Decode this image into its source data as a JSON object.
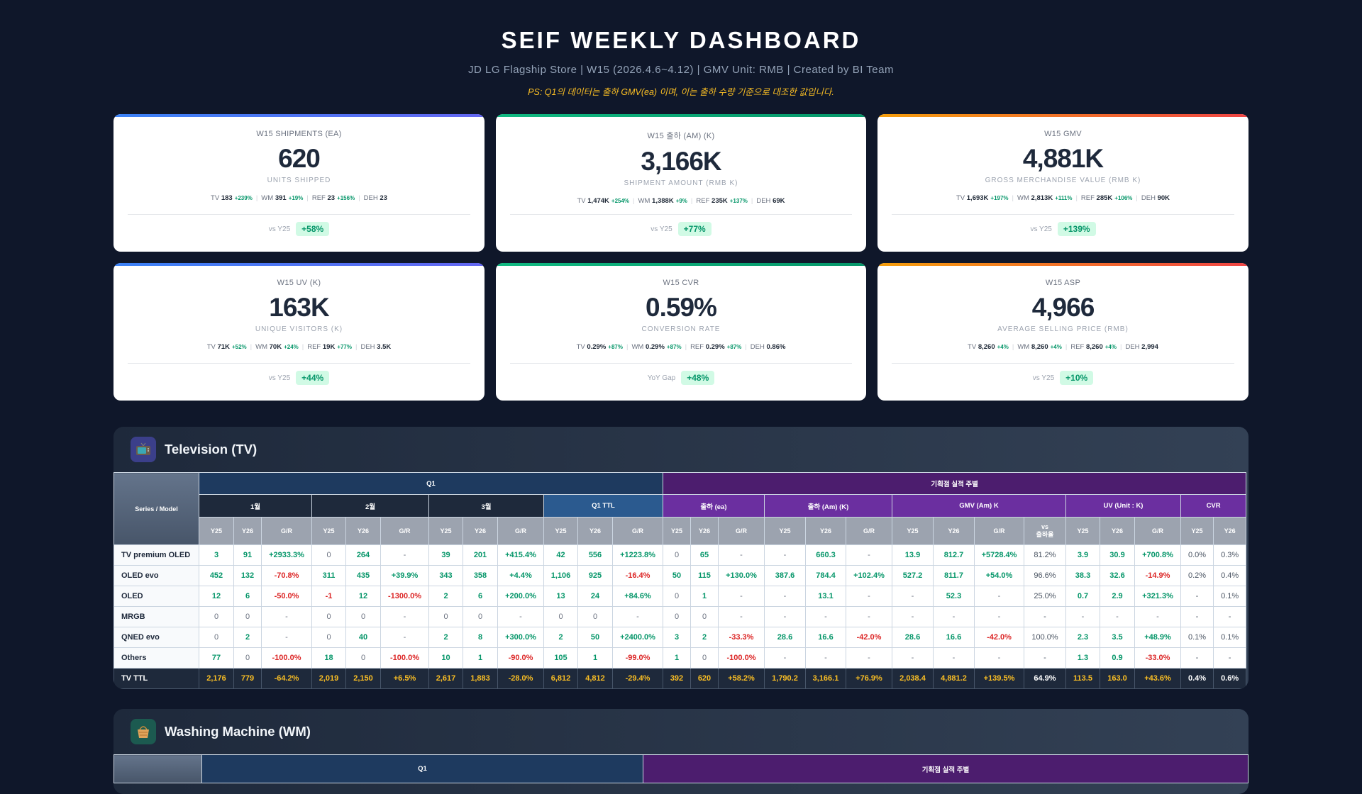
{
  "header": {
    "title": "SEIF WEEKLY DASHBOARD",
    "subtitle": "JD LG Flagship Store | W15 (2026.4.6~4.12) | GMV Unit: RMB | Created by BI Team",
    "note": "PS: Q1의 데이터는 출하 GMV(ea) 이며, 이는 출하 수량 기준으로 대조한 값입니다."
  },
  "colors": {
    "background": "#0f172a",
    "positive": "#059669",
    "negative": "#dc2626",
    "total_text": "#fbbf24"
  },
  "cards": [
    {
      "title": "W15 SHIPMENTS (EA)",
      "value": "620",
      "sub": "UNITS SHIPPED",
      "accent": "blue",
      "details": [
        {
          "label": "TV",
          "value": "183",
          "change": "+239%"
        },
        {
          "label": "WM",
          "value": "391",
          "change": "+19%"
        },
        {
          "label": "REF",
          "value": "23",
          "change": "+156%"
        },
        {
          "label": "DEH",
          "value": "23",
          "change": ""
        }
      ],
      "vs_label": "vs Y25",
      "vs_value": "+58%"
    },
    {
      "title": "W15 출하 (AM) (K)",
      "value": "3,166K",
      "sub": "SHIPMENT AMOUNT (RMB K)",
      "accent": "green",
      "details": [
        {
          "label": "TV",
          "value": "1,474K",
          "change": "+254%"
        },
        {
          "label": "WM",
          "value": "1,388K",
          "change": "+9%"
        },
        {
          "label": "REF",
          "value": "235K",
          "change": "+137%"
        },
        {
          "label": "DEH",
          "value": "69K",
          "change": ""
        }
      ],
      "vs_label": "vs Y25",
      "vs_value": "+77%"
    },
    {
      "title": "W15 GMV",
      "value": "4,881K",
      "sub": "GROSS MERCHANDISE VALUE (RMB K)",
      "accent": "orange",
      "details": [
        {
          "label": "TV",
          "value": "1,693K",
          "change": "+197%"
        },
        {
          "label": "WM",
          "value": "2,813K",
          "change": "+111%"
        },
        {
          "label": "REF",
          "value": "285K",
          "change": "+106%"
        },
        {
          "label": "DEH",
          "value": "90K",
          "change": ""
        }
      ],
      "vs_label": "vs Y25",
      "vs_value": "+139%"
    },
    {
      "title": "W15 UV (K)",
      "value": "163K",
      "sub": "UNIQUE VISITORS (K)",
      "accent": "blue",
      "details": [
        {
          "label": "TV",
          "value": "71K",
          "change": "+52%"
        },
        {
          "label": "WM",
          "value": "70K",
          "change": "+24%"
        },
        {
          "label": "REF",
          "value": "19K",
          "change": "+77%"
        },
        {
          "label": "DEH",
          "value": "3.5K",
          "change": ""
        }
      ],
      "vs_label": "vs Y25",
      "vs_value": "+44%"
    },
    {
      "title": "W15 CVR",
      "value": "0.59%",
      "sub": "CONVERSION RATE",
      "accent": "green",
      "details": [
        {
          "label": "TV",
          "value": "0.29%",
          "change": "+87%"
        },
        {
          "label": "WM",
          "value": "0.29%",
          "change": "+87%"
        },
        {
          "label": "REF",
          "value": "0.29%",
          "change": "+87%"
        },
        {
          "label": "DEH",
          "value": "0.86%",
          "change": ""
        }
      ],
      "vs_label": "YoY Gap",
      "vs_value": "+48%"
    },
    {
      "title": "W15 ASP",
      "value": "4,966",
      "sub": "AVERAGE SELLING PRICE (RMB)",
      "accent": "orange",
      "details": [
        {
          "label": "TV",
          "value": "8,260",
          "change": "+4%"
        },
        {
          "label": "WM",
          "value": "8,260",
          "change": "+4%"
        },
        {
          "label": "REF",
          "value": "8,260",
          "change": "+4%"
        },
        {
          "label": "DEH",
          "value": "2,994",
          "change": ""
        }
      ],
      "vs_label": "vs Y25",
      "vs_value": "+10%"
    }
  ],
  "tv": {
    "name": "Television (TV)",
    "icon": "tv-icon",
    "series_header": "Series / Model",
    "group_q1": "Q1",
    "group_weekly": "기획점 실적 주별",
    "subgroups": [
      {
        "label": "1월",
        "cols": [
          "Y25",
          "Y26",
          "G/R"
        ],
        "kind": "month"
      },
      {
        "label": "2월",
        "cols": [
          "Y25",
          "Y26",
          "G/R"
        ],
        "kind": "month"
      },
      {
        "label": "3월",
        "cols": [
          "Y25",
          "Y26",
          "G/R"
        ],
        "kind": "month"
      },
      {
        "label": "Q1 TTL",
        "cols": [
          "Y25",
          "Y26",
          "G/R"
        ],
        "kind": "q1ttl"
      },
      {
        "label": "출하 (ea)",
        "cols": [
          "Y25",
          "Y26",
          "G/R"
        ],
        "kind": "sub"
      },
      {
        "label": "출하 (Am) (K)",
        "cols": [
          "Y25",
          "Y26",
          "G/R"
        ],
        "kind": "sub"
      },
      {
        "label": "GMV (Am) K",
        "cols": [
          "Y25",
          "Y26",
          "G/R",
          "vs\n출하율"
        ],
        "kind": "sub"
      },
      {
        "label": "UV (Unit : K)",
        "cols": [
          "Y25",
          "Y26",
          "G/R"
        ],
        "kind": "sub"
      },
      {
        "label": "CVR",
        "cols": [
          "Y25",
          "Y26"
        ],
        "kind": "sub"
      }
    ],
    "rows": [
      {
        "name": "TV premium OLED",
        "cells": [
          "3",
          "91",
          "+2933.3%",
          "0",
          "264",
          "-",
          "39",
          "201",
          "+415.4%",
          "42",
          "556",
          "+1223.8%",
          "0",
          "65",
          "-",
          "-",
          "660.3",
          "-",
          "13.9",
          "812.7",
          "+5728.4%",
          "81.2%",
          "3.9",
          "30.9",
          "+700.8%",
          "0.0%",
          "0.3%"
        ]
      },
      {
        "name": "OLED evo",
        "cells": [
          "452",
          "132",
          "-70.8%",
          "311",
          "435",
          "+39.9%",
          "343",
          "358",
          "+4.4%",
          "1,106",
          "925",
          "-16.4%",
          "50",
          "115",
          "+130.0%",
          "387.6",
          "784.4",
          "+102.4%",
          "527.2",
          "811.7",
          "+54.0%",
          "96.6%",
          "38.3",
          "32.6",
          "-14.9%",
          "0.2%",
          "0.4%"
        ]
      },
      {
        "name": "OLED",
        "cells": [
          "12",
          "6",
          "-50.0%",
          "-1",
          "12",
          "-1300.0%",
          "2",
          "6",
          "+200.0%",
          "13",
          "24",
          "+84.6%",
          "0",
          "1",
          "-",
          "-",
          "13.1",
          "-",
          "-",
          "52.3",
          "-",
          "25.0%",
          "0.7",
          "2.9",
          "+321.3%",
          "-",
          "0.1%"
        ]
      },
      {
        "name": "MRGB",
        "cells": [
          "0",
          "0",
          "-",
          "0",
          "0",
          "-",
          "0",
          "0",
          "-",
          "0",
          "0",
          "-",
          "0",
          "0",
          "-",
          "-",
          "-",
          "-",
          "-",
          "-",
          "-",
          "-",
          "-",
          "-",
          "-",
          "-",
          "-"
        ]
      },
      {
        "name": "QNED evo",
        "cells": [
          "0",
          "2",
          "-",
          "0",
          "40",
          "-",
          "2",
          "8",
          "+300.0%",
          "2",
          "50",
          "+2400.0%",
          "3",
          "2",
          "-33.3%",
          "28.6",
          "16.6",
          "-42.0%",
          "28.6",
          "16.6",
          "-42.0%",
          "100.0%",
          "2.3",
          "3.5",
          "+48.9%",
          "0.1%",
          "0.1%"
        ]
      },
      {
        "name": "Others",
        "cells": [
          "77",
          "0",
          "-100.0%",
          "18",
          "0",
          "-100.0%",
          "10",
          "1",
          "-90.0%",
          "105",
          "1",
          "-99.0%",
          "1",
          "0",
          "-100.0%",
          "-",
          "-",
          "-",
          "-",
          "-",
          "-",
          "-",
          "1.3",
          "0.9",
          "-33.0%",
          "-",
          "-"
        ]
      }
    ],
    "total": {
      "name": "TV TTL",
      "cells": [
        "2,176",
        "779",
        "-64.2%",
        "2,019",
        "2,150",
        "+6.5%",
        "2,617",
        "1,883",
        "-28.0%",
        "6,812",
        "4,812",
        "-29.4%",
        "392",
        "620",
        "+58.2%",
        "1,790.2",
        "3,166.1",
        "+76.9%",
        "2,038.4",
        "4,881.2",
        "+139.5%",
        "64.9%",
        "113.5",
        "163.0",
        "+43.6%",
        "0.4%",
        "0.6%"
      ]
    }
  },
  "wm": {
    "name": "Washing Machine (WM)",
    "icon": "basket-icon",
    "group_q1": "Q1",
    "group_weekly": "기획점 실적 주별"
  }
}
